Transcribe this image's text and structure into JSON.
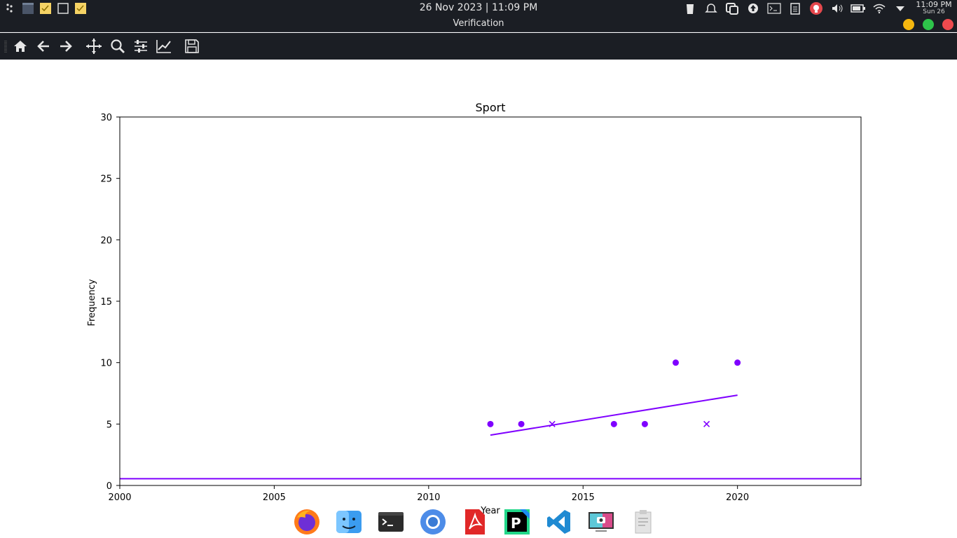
{
  "top_panel": {
    "datetime": "26 Nov 2023 | 11:09 PM",
    "clock_time": "11:09 PM",
    "clock_date": "Sun 26"
  },
  "window": {
    "title": "Verification"
  },
  "toolbar": {
    "tools": [
      "home-icon",
      "back-arrow-icon",
      "forward-arrow-icon",
      "pan-icon",
      "zoom-icon",
      "configure-subplots-icon",
      "edit-axis-icon",
      "save-icon"
    ]
  },
  "dock": {
    "apps": [
      "firefox-icon",
      "file-manager-icon",
      "terminal-icon",
      "chromium-icon",
      "pdf-reader-icon",
      "pycharm-icon",
      "vscode-icon",
      "screenshot-icon",
      "clipboard-icon"
    ]
  },
  "colors": {
    "panel_bg": "#1b1e24",
    "series": "#7f00ff"
  },
  "chart_data": {
    "type": "scatter",
    "title": "Sport",
    "xlabel": "Year",
    "ylabel": "Frequency",
    "xlim": [
      2000,
      2024
    ],
    "ylim": [
      0,
      30
    ],
    "xticks": [
      "2000",
      "2005",
      "2010",
      "2015",
      "2020"
    ],
    "yticks": [
      "0",
      "5",
      "10",
      "15",
      "20",
      "25",
      "30"
    ],
    "grid": false,
    "series": [
      {
        "marker": "circle",
        "points": [
          [
            2012,
            5
          ],
          [
            2013,
            5
          ],
          [
            2016,
            5
          ],
          [
            2017,
            5
          ],
          [
            2018,
            10
          ],
          [
            2020,
            10
          ]
        ]
      },
      {
        "marker": "x",
        "points": [
          [
            2014,
            5
          ],
          [
            2019,
            5
          ]
        ]
      }
    ],
    "trend_line": {
      "x": [
        2012,
        2020
      ],
      "y": [
        4.1,
        7.35
      ]
    },
    "horizontal_line": {
      "y": 0.55
    }
  }
}
